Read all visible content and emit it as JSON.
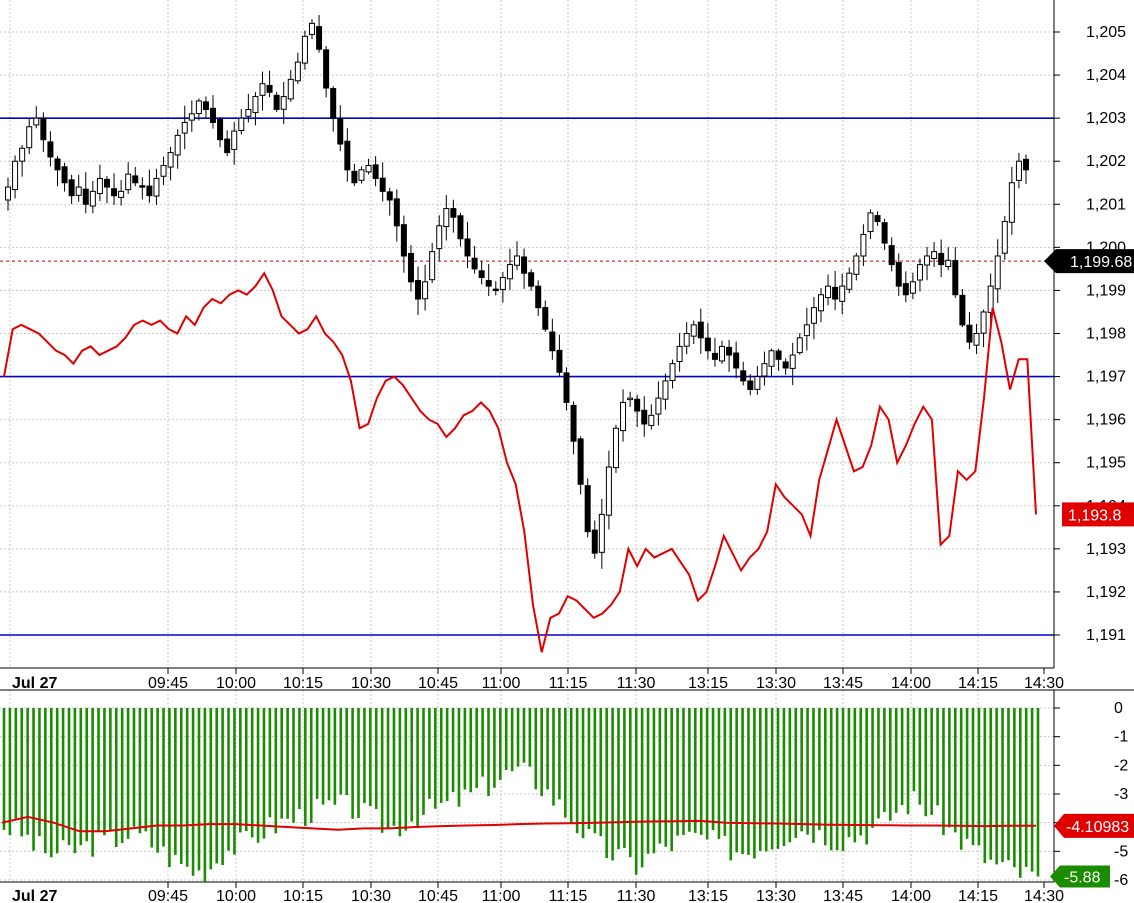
{
  "chart_data": [
    {
      "type": "candlestick",
      "ylim": [
        1190.6,
        1205.7
      ],
      "y_ticks": [
        "1,191",
        "1,192",
        "1,193",
        "1,194",
        "1,195",
        "1,196",
        "1,197",
        "1,198",
        "1,199",
        "1,200",
        "1,201",
        "1,202",
        "1,203",
        "1,204",
        "1,205"
      ],
      "x_ticks": [
        "09:45",
        "10:00",
        "10:15",
        "10:30",
        "10:45",
        "11:00",
        "11:15",
        "11:30",
        "13:15",
        "13:30",
        "13:45",
        "14:00",
        "14:15",
        "14:30"
      ],
      "date_label": "Jul 27",
      "grid": true,
      "horizontal_levels": [
        1203.0,
        1197.0,
        1191.0
      ],
      "reference_line": 1199.68,
      "last_price_label": "1,199.68",
      "close_path": [
        1201.4,
        1202.0,
        1202.3,
        1202.8,
        1203.0,
        1202.5,
        1202.1,
        1201.8,
        1201.5,
        1201.2,
        1201.4,
        1201.0,
        1201.3,
        1201.6,
        1201.4,
        1201.2,
        1201.3,
        1201.7,
        1201.5,
        1201.4,
        1201.2,
        1201.6,
        1201.9,
        1202.2,
        1202.6,
        1202.9,
        1203.1,
        1203.4,
        1203.2,
        1202.9,
        1202.5,
        1202.2,
        1202.7,
        1203.0,
        1203.2,
        1203.5,
        1203.8,
        1203.6,
        1203.2,
        1203.5,
        1203.9,
        1204.3,
        1204.9,
        1205.2,
        1204.6,
        1203.7,
        1203.0,
        1202.4,
        1201.8,
        1201.5,
        1201.8,
        1201.9,
        1201.6,
        1201.3,
        1201.1,
        1200.5,
        1199.8,
        1199.2,
        1198.8,
        1199.2,
        1199.9,
        1200.5,
        1200.9,
        1200.7,
        1200.2,
        1199.8,
        1199.5,
        1199.3,
        1199.1,
        1199.0,
        1199.3,
        1199.6,
        1199.8,
        1199.4,
        1199.1,
        1198.6,
        1198.1,
        1197.6,
        1197.1,
        1196.4,
        1195.5,
        1194.5,
        1193.4,
        1192.9,
        1193.8,
        1194.9,
        1195.8,
        1196.4,
        1196.5,
        1196.2,
        1195.9,
        1196.1,
        1196.5,
        1196.9,
        1197.3,
        1197.7,
        1198.0,
        1198.2,
        1197.9,
        1197.6,
        1197.4,
        1197.7,
        1197.5,
        1197.2,
        1196.9,
        1196.7,
        1197.0,
        1197.3,
        1197.6,
        1197.4,
        1197.2,
        1197.5,
        1197.9,
        1198.2,
        1198.6,
        1198.9,
        1199.1,
        1198.8,
        1199.1,
        1199.4,
        1199.8,
        1200.3,
        1200.8,
        1200.6,
        1200.1,
        1199.6,
        1199.1,
        1198.9,
        1199.2,
        1199.6,
        1199.8,
        1199.9,
        1199.6,
        1199.7,
        1198.9,
        1198.2,
        1197.8,
        1198.0,
        1198.5,
        1199.1,
        1199.8,
        1200.6,
        1201.5,
        1202.0,
        1201.8
      ],
      "close_path_note_hidden": ""
    },
    {
      "type": "line",
      "series": [
        {
          "values": [
            1197.0,
            1198.1,
            1198.2,
            1198.1,
            1198.0,
            1197.8,
            1197.6,
            1197.5,
            1197.3,
            1197.6,
            1197.7,
            1197.5,
            1197.6,
            1197.7,
            1197.9,
            1198.2,
            1198.3,
            1198.2,
            1198.3,
            1198.1,
            1198.0,
            1198.4,
            1198.2,
            1198.6,
            1198.8,
            1198.7,
            1198.9,
            1199.0,
            1198.9,
            1199.1,
            1199.4,
            1199.0,
            1198.4,
            1198.2,
            1198.0,
            1198.1,
            1198.4,
            1198.0,
            1197.8,
            1197.5,
            1196.9,
            1195.8,
            1195.9,
            1196.5,
            1196.9,
            1197.0,
            1196.8,
            1196.5,
            1196.2,
            1196.0,
            1195.9,
            1195.6,
            1195.8,
            1196.1,
            1196.2,
            1196.4,
            1196.2,
            1195.8,
            1195.0,
            1194.5,
            1193.4,
            1191.7,
            1190.6,
            1191.4,
            1191.5,
            1191.9,
            1191.8,
            1191.6,
            1191.4,
            1191.5,
            1191.7,
            1192.0,
            1193.0,
            1192.6,
            1193.0,
            1192.8,
            1192.9,
            1193.0,
            1192.7,
            1192.4,
            1191.8,
            1192.0,
            1192.6,
            1193.3,
            1192.9,
            1192.5,
            1192.8,
            1193.0,
            1193.4,
            1194.5,
            1194.2,
            1194.0,
            1193.8,
            1193.3,
            1194.6,
            1195.3,
            1196.0,
            1195.4,
            1194.8,
            1194.9,
            1195.4,
            1196.3,
            1196.0,
            1195.0,
            1195.4,
            1195.9,
            1196.3,
            1196.0,
            1193.1,
            1193.3,
            1194.8,
            1194.6,
            1194.8,
            1196.5,
            1198.6,
            1197.8,
            1196.7,
            1197.4,
            1197.4,
            1193.8
          ],
          "color": "#e00000"
        }
      ],
      "last_value_label": "1,193.8"
    },
    {
      "type": "bar",
      "panel": "indicator",
      "ylim": [
        -6.3,
        0.3
      ],
      "y_ticks": [
        "0",
        "-1",
        "-2",
        "-3",
        "-4",
        "-5",
        "-6"
      ],
      "x_ticks": [
        "09:45",
        "10:00",
        "10:15",
        "10:30",
        "10:45",
        "11:00",
        "11:15",
        "11:30",
        "13:15",
        "13:30",
        "13:45",
        "14:00",
        "14:15",
        "14:30"
      ],
      "date_label": "Jul 27",
      "bar_color": "#1a8c00",
      "bar_values_profile": [
        -4.1,
        -4.3,
        -4.8,
        -5.1,
        -5.0,
        -4.9,
        -4.7,
        -4.6,
        -4.4,
        -4.5,
        -4.9,
        -5.3,
        -5.6,
        -5.8,
        -5.1,
        -4.8,
        -4.6,
        -4.2,
        -4.0,
        -3.8,
        -3.6,
        -3.5,
        -3.4,
        -3.6,
        -3.9,
        -4.2,
        -4.0,
        -3.7,
        -3.5,
        -3.3,
        -3.1,
        -2.8,
        -2.5,
        -2.2,
        -2.3,
        -2.8,
        -3.4,
        -4.0,
        -4.6,
        -5.0,
        -5.2,
        -5.5,
        -5.1,
        -4.8,
        -4.6,
        -4.5,
        -4.7,
        -4.9,
        -5.0,
        -4.8,
        -4.6,
        -4.3,
        -4.2,
        -4.4,
        -4.6,
        -4.5,
        -4.3,
        -4.0,
        -3.5,
        -3.2,
        -3.6,
        -4.1,
        -4.6,
        -5.0,
        -5.4,
        -5.6,
        -5.8,
        -5.88
      ],
      "signal_line": [
        -4.0,
        -3.8,
        -4.0,
        -4.3,
        -4.3,
        -4.2,
        -4.1,
        -4.1,
        -4.05,
        -4.05,
        -4.1,
        -4.15,
        -4.2,
        -4.25,
        -4.2,
        -4.2,
        -4.15,
        -4.12,
        -4.1,
        -4.08,
        -4.05,
        -4.03,
        -4.02,
        -4.0,
        -3.98,
        -3.96,
        -3.95,
        -3.94,
        -4.0,
        -4.02,
        -4.03,
        -4.05,
        -4.07,
        -4.08,
        -4.09,
        -4.1,
        -4.1,
        -4.11,
        -4.12,
        -4.11,
        -4.10983
      ],
      "signal_color": "#e00000",
      "last_signal_label": "-4.10983",
      "last_bar_label": "-5.88"
    }
  ],
  "colors": {
    "level_line": "#0000cc",
    "reference_line": "#cc0000",
    "candle_up_fill": "#ffffff",
    "candle_down_fill": "#000000",
    "label_black": "#000000",
    "label_red": "#e00000",
    "label_green": "#1a8c00"
  }
}
